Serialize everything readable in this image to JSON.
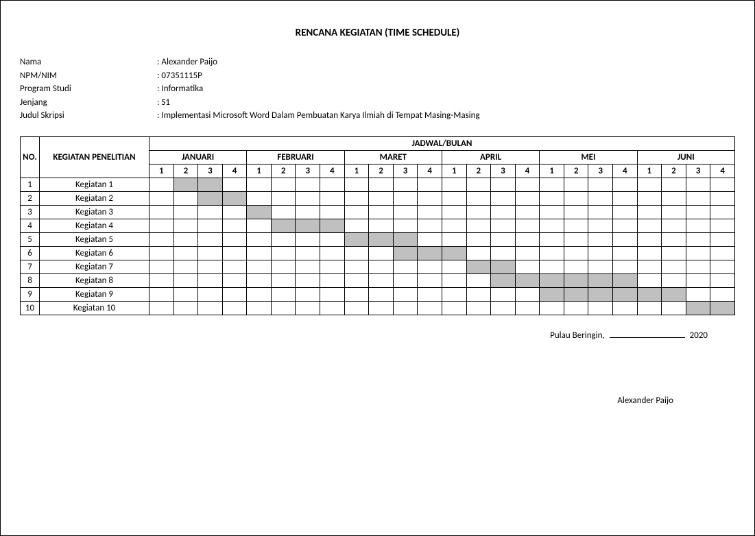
{
  "title": "RENCANA KEGIATAN (TIME SCHEDULE)",
  "meta": {
    "nama_label": "Nama",
    "nama_value": "Alexander Paijo",
    "npm_label": "NPM/NIM",
    "npm_value": "07351115P",
    "prodi_label": "Program Studi",
    "prodi_value": "Informatika",
    "jenjang_label": "Jenjang",
    "jenjang_value": "S1",
    "judul_label": "Judul Skripsi",
    "judul_value": "Implementasi Microsoft Word Dalam Pembuatan Karya Ilmiah di Tempat Masing-Masing"
  },
  "table": {
    "col_no": "NO.",
    "col_activity": "KEGIATAN PENELITIAN",
    "col_schedule": "JADWAL/BULAN",
    "months": [
      "JANUARI",
      "FEBRUARI",
      "MARET",
      "APRIL",
      "MEI",
      "JUNI"
    ],
    "weeks": [
      "1",
      "2",
      "3",
      "4"
    ],
    "rows": [
      {
        "no": "1",
        "activity": "Kegiatan 1",
        "fill": [
          2,
          3
        ]
      },
      {
        "no": "2",
        "activity": "Kegiatan 2",
        "fill": [
          3,
          4
        ]
      },
      {
        "no": "3",
        "activity": "Kegiatan 3",
        "fill": [
          5
        ]
      },
      {
        "no": "4",
        "activity": "Kegiatan 4",
        "fill": [
          6,
          7,
          8
        ]
      },
      {
        "no": "5",
        "activity": "Kegiatan 5",
        "fill": [
          9,
          10,
          11
        ]
      },
      {
        "no": "6",
        "activity": "Kegiatan 6",
        "fill": [
          11,
          12,
          13
        ]
      },
      {
        "no": "7",
        "activity": "Kegiatan 7",
        "fill": [
          14,
          15
        ]
      },
      {
        "no": "8",
        "activity": "Kegiatan 8",
        "fill": [
          15,
          16,
          17,
          18,
          19,
          20
        ]
      },
      {
        "no": "9",
        "activity": "Kegiatan 9",
        "fill": [
          17,
          18,
          19,
          20,
          21,
          22
        ]
      },
      {
        "no": "10",
        "activity": "Kegiatan 10",
        "fill": [
          23,
          24
        ]
      }
    ],
    "filled_color": "#c0c0c0",
    "border_color": "#000000",
    "background_color": "#ffffff"
  },
  "signature": {
    "place": "Pulau Beringin,",
    "year": "2020",
    "name": "Alexander Paijo"
  }
}
